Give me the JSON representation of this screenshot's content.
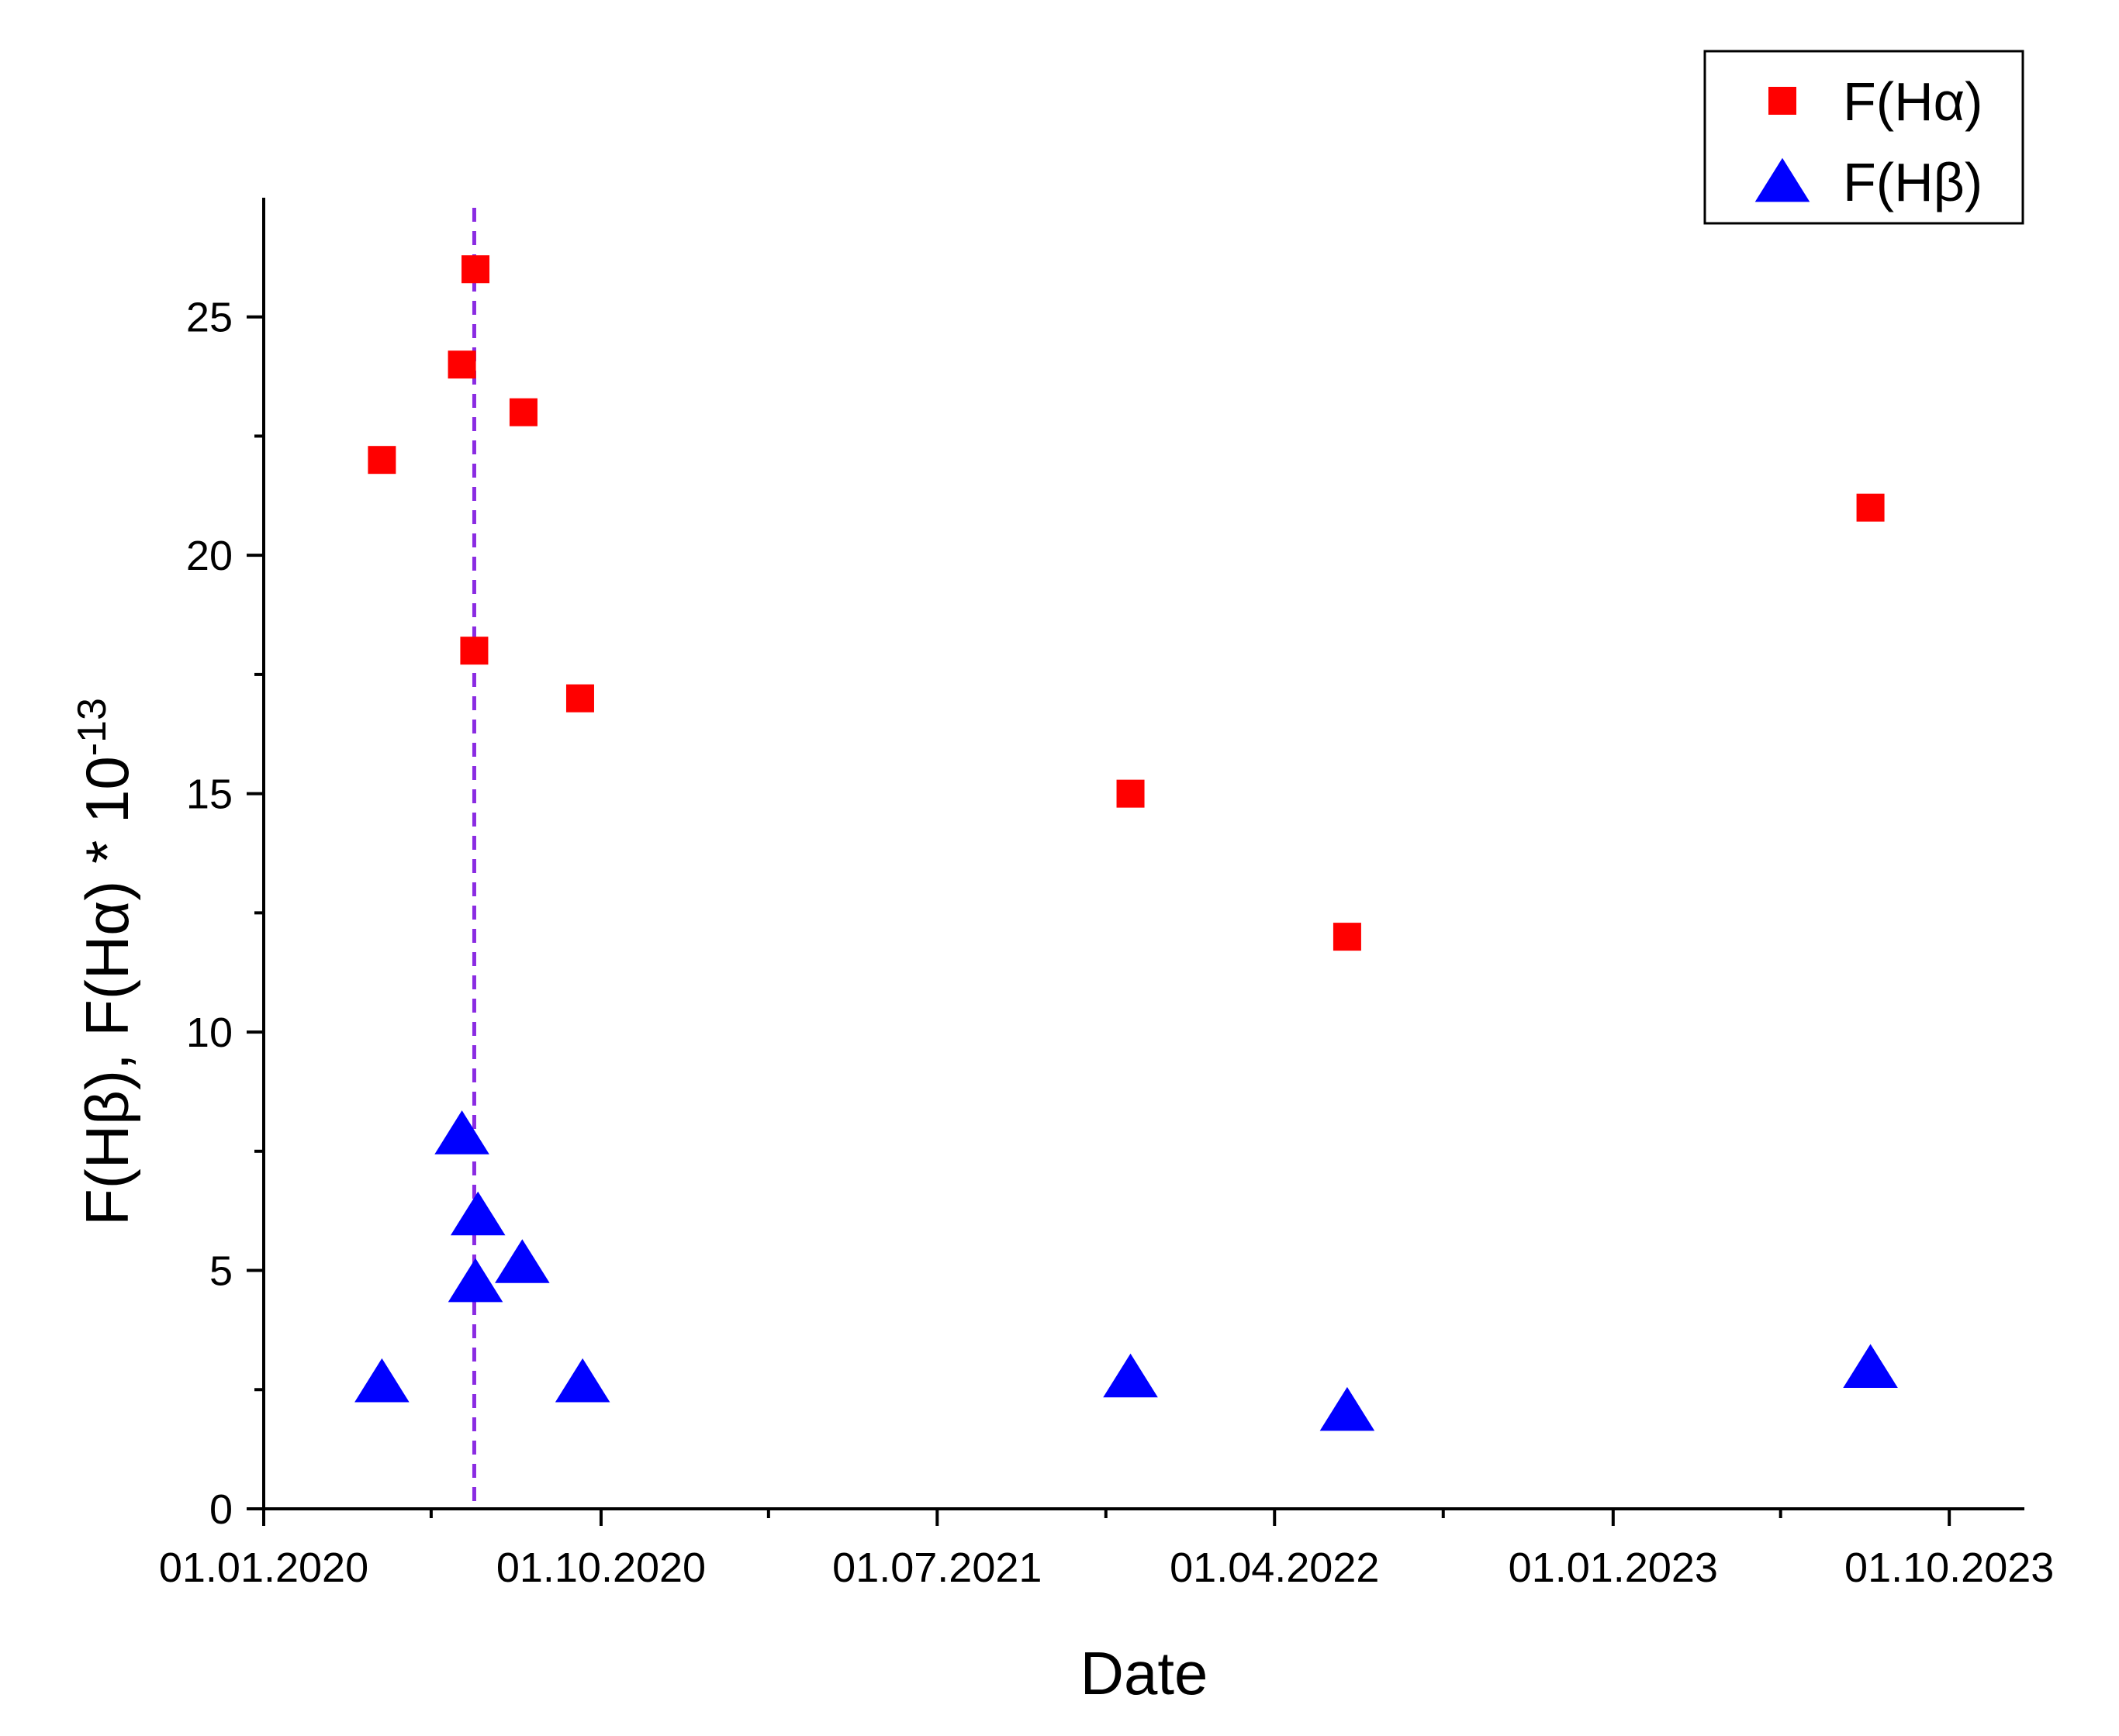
{
  "chart_data": {
    "type": "scatter",
    "title": "",
    "xlabel": "Date",
    "ylabel": {
      "main": "F(Hβ), F(Hα) * 10",
      "exponent": "-13"
    },
    "x_axis": {
      "type": "date",
      "range": [
        "2020-01-01",
        "2023-12-01"
      ],
      "major_ticks": [
        "2020-01-01",
        "2020-10-01",
        "2021-07-01",
        "2022-04-01",
        "2023-01-01",
        "2023-10-01"
      ],
      "minor_ticks": [
        "2020-05-16",
        "2021-02-14",
        "2021-11-15",
        "2022-08-16",
        "2023-05-17"
      ],
      "tick_labels": [
        "01.01.2020",
        "01.10.2020",
        "01.07.2021",
        "01.04.2022",
        "01.01.2023",
        "01.10.2023"
      ]
    },
    "y_axis": {
      "range": [
        0,
        27.5
      ],
      "major_ticks": [
        0,
        5,
        10,
        15,
        20,
        25
      ],
      "minor_ticks": [
        2.5,
        7.5,
        12.5,
        17.5,
        22.5
      ],
      "tick_labels": [
        "0",
        "5",
        "10",
        "15",
        "20",
        "25"
      ]
    },
    "grid": false,
    "legend_position": "top-right",
    "series": [
      {
        "name": "F(Hα)",
        "marker": "square",
        "color": "#ff0000",
        "points": [
          {
            "x": "2020-04-06",
            "y": 22
          },
          {
            "x": "2020-06-10",
            "y": 24
          },
          {
            "x": "2020-06-21",
            "y": 26
          },
          {
            "x": "2020-06-20",
            "y": 18
          },
          {
            "x": "2020-07-30",
            "y": 23
          },
          {
            "x": "2020-09-14",
            "y": 17
          },
          {
            "x": "2021-12-05",
            "y": 15
          },
          {
            "x": "2022-05-30",
            "y": 12
          },
          {
            "x": "2023-07-29",
            "y": 21
          }
        ]
      },
      {
        "name": "F(Hβ)",
        "marker": "triangle",
        "color": "#0000ff",
        "points": [
          {
            "x": "2020-04-06",
            "y": 2.6
          },
          {
            "x": "2020-06-10",
            "y": 7.8
          },
          {
            "x": "2020-06-23",
            "y": 6.1
          },
          {
            "x": "2020-06-21",
            "y": 4.7
          },
          {
            "x": "2020-07-29",
            "y": 5.1
          },
          {
            "x": "2020-09-16",
            "y": 2.6
          },
          {
            "x": "2021-12-05",
            "y": 2.7
          },
          {
            "x": "2022-05-30",
            "y": 2.0
          },
          {
            "x": "2023-07-29",
            "y": 2.9
          }
        ]
      }
    ],
    "reference_lines": [
      {
        "orientation": "vertical",
        "x": "2020-06-20",
        "style": "dashed",
        "color": "#8a2be2"
      }
    ]
  }
}
